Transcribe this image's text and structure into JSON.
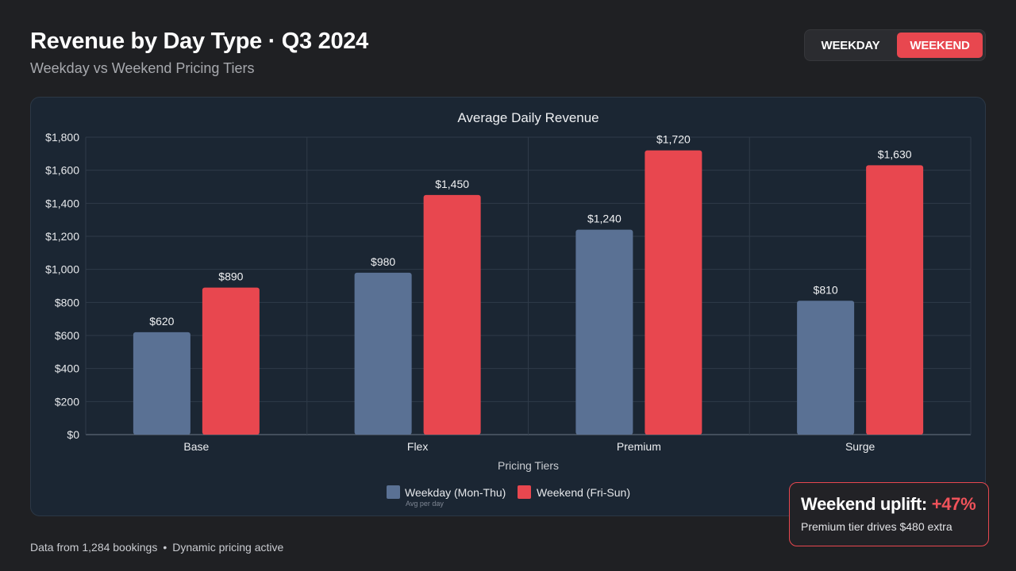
{
  "header": {
    "title": "Revenue by Day Type · Q3 2024",
    "subtitle": "Weekday vs Weekend Pricing Tiers"
  },
  "toggle": {
    "weekday_label": "WEEKDAY",
    "weekend_label": "WEEKEND",
    "selected": "WEEKEND"
  },
  "colors": {
    "weekday": "#5a7194",
    "weekend": "#e8474f",
    "panel": "#1b2633",
    "background": "#1f2023"
  },
  "chart_data": {
    "type": "bar",
    "title": "Average Daily Revenue",
    "xlabel": "Pricing Tiers",
    "ylabel": "",
    "categories": [
      "Base",
      "Flex",
      "Premium",
      "Surge"
    ],
    "series": [
      {
        "name": "Weekday (Mon-Thu)",
        "values": [
          620,
          980,
          1240,
          810
        ],
        "value_labels": [
          "$620",
          "$980",
          "$1,240",
          "$810"
        ],
        "color": "#5a7194"
      },
      {
        "name": "Weekend (Fri-Sun)",
        "values": [
          890,
          1450,
          1720,
          1630
        ],
        "value_labels": [
          "$890",
          "$1,450",
          "$1,720",
          "$1,630"
        ],
        "color": "#e8474f"
      }
    ],
    "ylim": [
      0,
      1800
    ],
    "yticks": [
      0,
      200,
      400,
      600,
      800,
      1000,
      1200,
      1400,
      1600,
      1800
    ],
    "ytick_labels": [
      "$0",
      "$200",
      "$400",
      "$600",
      "$800",
      "$1,000",
      "$1,200",
      "$1,400",
      "$1,600",
      "$1,800"
    ],
    "legend_placement": "bottom-center",
    "legend_note": "Avg per day",
    "grid": true
  },
  "callout": {
    "heading": "Weekend uplift:",
    "value": "+47%",
    "text": "Premium tier drives $480 extra"
  },
  "footer": {
    "source": "Data from 1,284 bookings",
    "separator": "•",
    "note": "Dynamic pricing active"
  }
}
